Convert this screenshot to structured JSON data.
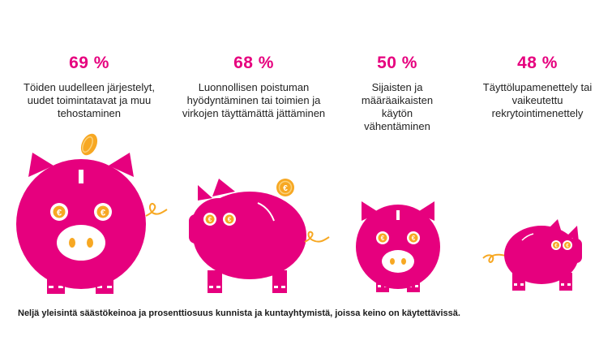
{
  "colors": {
    "pink": "#e6007e",
    "coin": "#f7a823",
    "text": "#222222"
  },
  "stats": [
    {
      "percent": "69 %",
      "description": "Töiden uudelleen järjestelyt, uudet toimintatavat ja muu tehostaminen"
    },
    {
      "percent": "68 %",
      "description": "Luonnollisen poistuman hyödyntäminen tai toimien ja virkojen täyttämättä jättäminen"
    },
    {
      "percent": "50 %",
      "description": "Sijaisten ja määräaikaisten käytön vähentäminen"
    },
    {
      "percent": "48 %",
      "description": "Täyttölupamenettely tai vaikeutettu rekrytointimenettely"
    }
  ],
  "caption": "Neljä yleisintä säästökeinoa ja prosenttiosuus kunnista ja kuntayhtymistä, joissa keino on käytettävissä.",
  "icons": [
    "piggy-bank-icon",
    "coin-icon",
    "euro-eye-icon"
  ]
}
